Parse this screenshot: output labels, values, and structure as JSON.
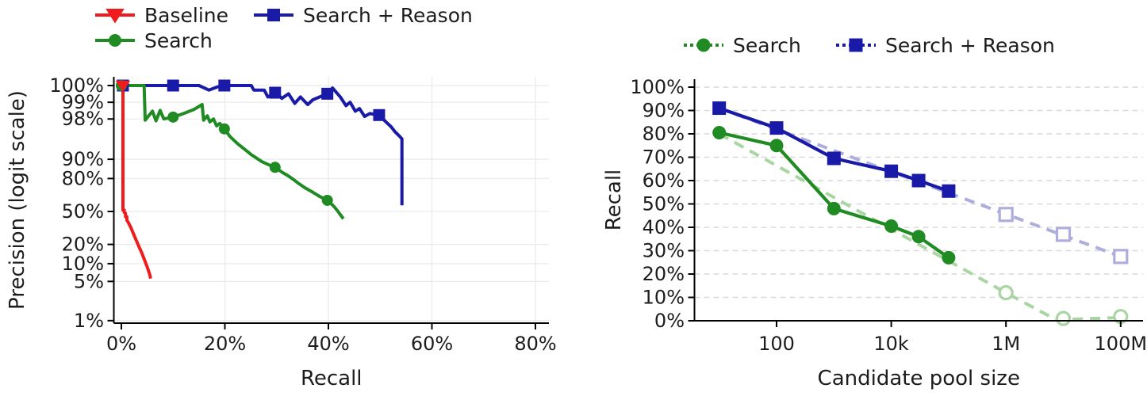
{
  "figure": {
    "background": "#ffffff",
    "text_color": "#1c1c1c",
    "axis_color": "#000000"
  },
  "chart_data": [
    {
      "id": "precision-recall",
      "type": "line",
      "title": "",
      "xlabel": "Recall",
      "ylabel": "Precision (logit scale)",
      "x_scale": "linear-percent",
      "y_scale": "logit-percent",
      "xlim": [
        0,
        82
      ],
      "grid": "solid",
      "legend_position": "top-left",
      "x_ticks": [
        {
          "label": "0%",
          "value": 0
        },
        {
          "label": "20%",
          "value": 20
        },
        {
          "label": "40%",
          "value": 40
        },
        {
          "label": "60%",
          "value": 60
        },
        {
          "label": "80%",
          "value": 80
        }
      ],
      "y_ticks": [
        {
          "label": "100%",
          "value": 100
        },
        {
          "label": "99%",
          "value": 99
        },
        {
          "label": "98%",
          "value": 98
        },
        {
          "label": "90%",
          "value": 90
        },
        {
          "label": "80%",
          "value": 80
        },
        {
          "label": "50%",
          "value": 50
        },
        {
          "label": "20%",
          "value": 20
        },
        {
          "label": "10%",
          "value": 10
        },
        {
          "label": "5%",
          "value": 5
        },
        {
          "label": "1%",
          "value": 1
        }
      ],
      "series": [
        {
          "name": "Search + Reason",
          "color": "#1a1aa8",
          "marker": "square",
          "line": [
            [
              0.3,
              100
            ],
            [
              15.0,
              100
            ],
            [
              16.9,
              99.4
            ],
            [
              19.3,
              100
            ],
            [
              25.1,
              100
            ],
            [
              25.6,
              99.4
            ],
            [
              27.6,
              99.4
            ],
            [
              28.3,
              99.2
            ],
            [
              29.9,
              99.33
            ],
            [
              31.0,
              99.15
            ],
            [
              32.3,
              99.3
            ],
            [
              33.5,
              98.95
            ],
            [
              34.6,
              99.2
            ],
            [
              36.0,
              98.9
            ],
            [
              37.0,
              99.1
            ],
            [
              39.8,
              99.3
            ],
            [
              40.8,
              99.45
            ],
            [
              42.3,
              99.2
            ],
            [
              43.4,
              98.85
            ],
            [
              44.2,
              99.0
            ],
            [
              45.2,
              98.55
            ],
            [
              46.0,
              98.7
            ],
            [
              47.0,
              98.2
            ],
            [
              48.0,
              98.4
            ],
            [
              49.8,
              98.3
            ],
            [
              51.0,
              97.8
            ],
            [
              52.1,
              97.25
            ],
            [
              52.9,
              96.6
            ],
            [
              53.7,
              96.0
            ],
            [
              54.2,
              95.5
            ],
            [
              54.2,
              56.5
            ]
          ],
          "markers": [
            [
              0.3,
              100
            ],
            [
              10,
              100
            ],
            [
              19.9,
              100
            ],
            [
              29.7,
              99.33
            ],
            [
              39.8,
              99.3
            ],
            [
              49.8,
              98.3
            ]
          ]
        },
        {
          "name": "Search",
          "color": "#1f8b22",
          "marker": "circle",
          "line": [
            [
              0,
              100
            ],
            [
              4.4,
              100
            ],
            [
              4.6,
              97.9
            ],
            [
              6.0,
              98.55
            ],
            [
              6.7,
              97.85
            ],
            [
              7.5,
              98.6
            ],
            [
              8.2,
              98.0
            ],
            [
              10.0,
              98.15
            ],
            [
              12.0,
              98.4
            ],
            [
              14.0,
              98.65
            ],
            [
              15.6,
              98.9
            ],
            [
              15.9,
              97.9
            ],
            [
              16.6,
              98.25
            ],
            [
              17.1,
              97.75
            ],
            [
              17.8,
              98.0
            ],
            [
              18.4,
              97.35
            ],
            [
              19.0,
              97.6
            ],
            [
              19.9,
              97.0
            ],
            [
              21.0,
              95.9
            ],
            [
              22.5,
              94.5
            ],
            [
              24.0,
              93.0
            ],
            [
              25.1,
              91.6
            ],
            [
              26.3,
              90.2
            ],
            [
              27.2,
              89.0
            ],
            [
              28.4,
              87.8
            ],
            [
              29.7,
              86.5
            ],
            [
              31.0,
              84.0
            ],
            [
              32.2,
              81.8
            ],
            [
              33.4,
              79.0
            ],
            [
              34.3,
              76.3
            ],
            [
              35.5,
              73.0
            ],
            [
              36.8,
              69.7
            ],
            [
              37.6,
              67.4
            ],
            [
              38.3,
              65.3
            ],
            [
              39.1,
              63.3
            ],
            [
              39.8,
              61.5
            ],
            [
              40.6,
              57.8
            ],
            [
              41.1,
              55.0
            ],
            [
              41.8,
              50.5
            ],
            [
              42.5,
              45.2
            ],
            [
              42.9,
              42.5
            ]
          ],
          "markers": [
            [
              0,
              100
            ],
            [
              10,
              98.15
            ],
            [
              19.9,
              97.0
            ],
            [
              29.7,
              86.5
            ],
            [
              39.8,
              61.5
            ]
          ]
        },
        {
          "name": "Baseline",
          "color": "#ee1c1c",
          "marker": "triangle-down",
          "line": [
            [
              0.3,
              100
            ],
            [
              0.3,
              51.5
            ],
            [
              0.55,
              51.5
            ],
            [
              0.55,
              49.0
            ],
            [
              0.8,
              48.0
            ],
            [
              0.8,
              44.5
            ],
            [
              1.05,
              44.5
            ],
            [
              1.05,
              41.0
            ],
            [
              1.3,
              39.0
            ],
            [
              1.6,
              36.0
            ],
            [
              1.9,
              33.0
            ],
            [
              2.2,
              29.5
            ],
            [
              2.5,
              26.5
            ],
            [
              2.8,
              23.5
            ],
            [
              3.1,
              21.0
            ],
            [
              3.4,
              18.5
            ],
            [
              3.7,
              16.5
            ],
            [
              4.0,
              14.5
            ],
            [
              4.3,
              12.5
            ],
            [
              4.6,
              10.8
            ],
            [
              4.85,
              9.5
            ],
            [
              5.1,
              8.3
            ],
            [
              5.3,
              7.3
            ],
            [
              5.5,
              6.5
            ],
            [
              5.6,
              5.9
            ],
            [
              5.65,
              5.6
            ]
          ],
          "markers": [
            [
              0.3,
              100
            ]
          ]
        }
      ]
    },
    {
      "id": "recall-vs-pool-size",
      "type": "line",
      "title": "",
      "xlabel": "Candidate pool size",
      "ylabel": "Recall",
      "x_scale": "log",
      "y_scale": "linear-percent",
      "grid": "dashed-horizontal",
      "legend_position": "top-center",
      "x_ticks": [
        {
          "label": "100",
          "value": 100
        },
        {
          "label": "10k",
          "value": 10000
        },
        {
          "label": "1M",
          "value": 1000000
        },
        {
          "label": "100M",
          "value": 100000000
        }
      ],
      "y_ticks": [
        {
          "label": "100%",
          "value": 100
        },
        {
          "label": "90%",
          "value": 90
        },
        {
          "label": "80%",
          "value": 80
        },
        {
          "label": "70%",
          "value": 70
        },
        {
          "label": "60%",
          "value": 60
        },
        {
          "label": "50%",
          "value": 50
        },
        {
          "label": "40%",
          "value": 40
        },
        {
          "label": "30%",
          "value": 30
        },
        {
          "label": "20%",
          "value": 20
        },
        {
          "label": "10%",
          "value": 10
        },
        {
          "label": "0%",
          "value": 0
        }
      ],
      "series": [
        {
          "name": "Search",
          "color": "#1f8b22",
          "marker": "circle",
          "fit_color": "#a8d5a2",
          "measured": [
            [
              10,
              80.5
            ],
            [
              100,
              75
            ],
            [
              1000,
              48
            ],
            [
              10000,
              40.5
            ],
            [
              30000,
              36
            ],
            [
              100000,
              27
            ]
          ],
          "extrapolated": [
            [
              1000000,
              12
            ],
            [
              10000000,
              1
            ],
            [
              100000000,
              1.8
            ]
          ],
          "fit_line": [
            [
              10,
              80
            ],
            [
              1000000,
              12
            ],
            [
              7500000,
              0.4
            ],
            [
              100000000,
              1.4
            ]
          ]
        },
        {
          "name": "Search + Reason",
          "color": "#1a1aa8",
          "marker": "square",
          "fit_color": "#adaede",
          "measured": [
            [
              10,
              91
            ],
            [
              100,
              82.5
            ],
            [
              1000,
              69.5
            ],
            [
              10000,
              64
            ],
            [
              30000,
              60
            ],
            [
              100000,
              55.5
            ]
          ],
          "extrapolated": [
            [
              1000000,
              45.5
            ],
            [
              10000000,
              37
            ],
            [
              100000000,
              27.5
            ]
          ],
          "fit_line": [
            [
              10,
              91
            ],
            [
              100000000,
              27.5
            ]
          ]
        }
      ]
    }
  ]
}
